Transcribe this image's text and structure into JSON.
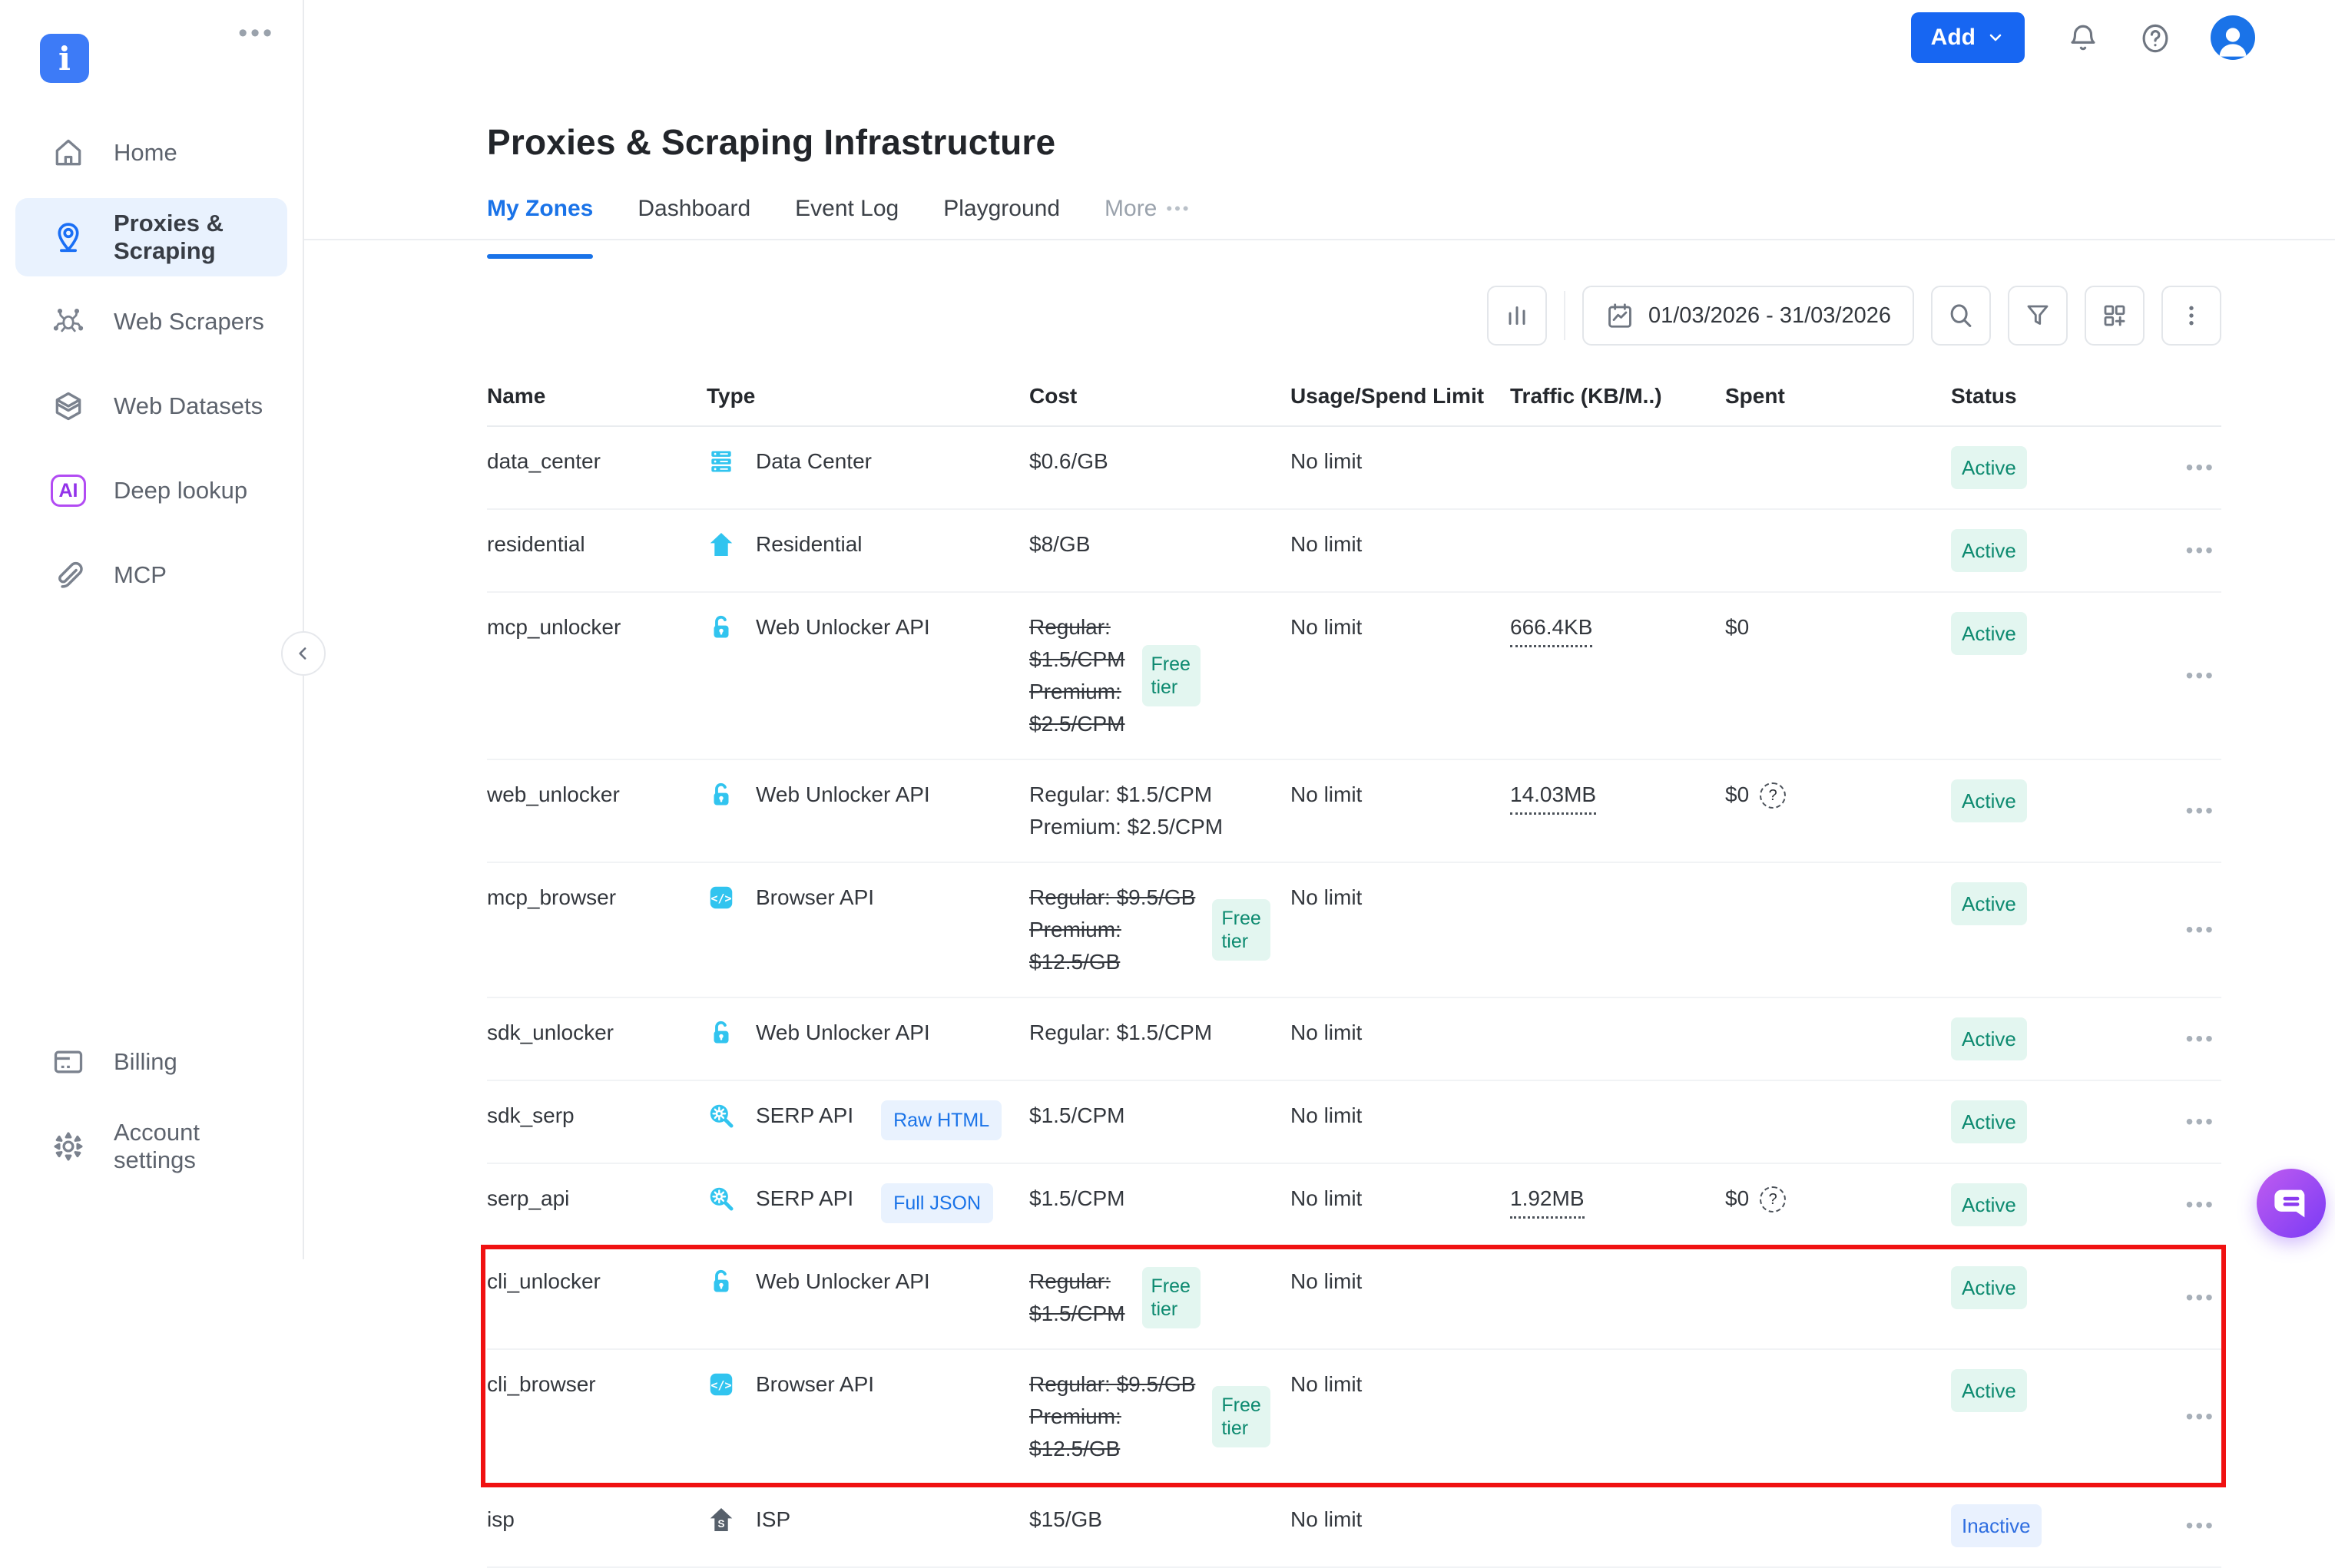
{
  "app": {
    "logo_glyph": "i",
    "colors": {
      "accent_blue": "#1766f2",
      "icon_cyan": "#31c4ef",
      "highlight_red": "#f01111",
      "active_badge_bg": "#e3f6f0",
      "active_badge_text": "#0d8a70",
      "inactive_badge_bg": "#e9f1fe",
      "inactive_badge_text": "#2f6ee0"
    }
  },
  "sidebar": {
    "menu_dots": "•••",
    "items": [
      {
        "label": "Home",
        "icon": "home",
        "active": false
      },
      {
        "label": "Proxies & Scraping",
        "icon": "location-pin",
        "active": true
      },
      {
        "label": "Web Scrapers",
        "icon": "spider",
        "active": false
      },
      {
        "label": "Web Datasets",
        "icon": "layers",
        "active": false
      },
      {
        "label": "Deep lookup",
        "icon": "ai",
        "active": false
      },
      {
        "label": "MCP",
        "icon": "paperclip",
        "active": false
      }
    ],
    "footer_items": [
      {
        "label": "Billing",
        "icon": "credit-card"
      },
      {
        "label": "Account settings",
        "icon": "gear"
      }
    ]
  },
  "topbar": {
    "add_label": "Add"
  },
  "page": {
    "title": "Proxies & Scraping Infrastructure",
    "tabs": [
      {
        "label": "My Zones",
        "active": true
      },
      {
        "label": "Dashboard",
        "active": false
      },
      {
        "label": "Event Log",
        "active": false
      },
      {
        "label": "Playground",
        "active": false
      },
      {
        "label": "More",
        "active": false,
        "muted": true,
        "overflow_dots": "•••"
      }
    ]
  },
  "toolbar": {
    "date_range": "01/03/2026 - 31/03/2026"
  },
  "table": {
    "columns": [
      "Name",
      "Type",
      "Cost",
      "Usage/Spend Limit",
      "Traffic (KB/M..)",
      "Spent",
      "Status"
    ],
    "rows": [
      {
        "name": "data_center",
        "type": "Data Center",
        "icon": "datacenter",
        "type_badge": "",
        "cost_lines": [
          "$0.6/GB"
        ],
        "cost_struck": false,
        "free_tier": false,
        "usage": "No limit",
        "traffic": "",
        "spent": "",
        "spent_help": false,
        "status": "Active",
        "highlighted": false
      },
      {
        "name": "residential",
        "type": "Residential",
        "icon": "house",
        "type_badge": "",
        "cost_lines": [
          "$8/GB"
        ],
        "cost_struck": false,
        "free_tier": false,
        "usage": "No limit",
        "traffic": "",
        "spent": "",
        "spent_help": false,
        "status": "Active",
        "highlighted": false
      },
      {
        "name": "mcp_unlocker",
        "type": "Web Unlocker API",
        "icon": "unlock",
        "type_badge": "",
        "cost_lines": [
          "Regular:",
          "$1.5/CPM",
          "Premium:",
          "$2.5/CPM"
        ],
        "cost_struck": true,
        "free_tier": true,
        "usage": "No limit",
        "traffic": "666.4KB",
        "spent": "$0",
        "spent_help": false,
        "status": "Active",
        "highlighted": false
      },
      {
        "name": "web_unlocker",
        "type": "Web Unlocker API",
        "icon": "unlock",
        "type_badge": "",
        "cost_lines": [
          "Regular: $1.5/CPM",
          "Premium: $2.5/CPM"
        ],
        "cost_struck": false,
        "free_tier": false,
        "usage": "No limit",
        "traffic": "14.03MB",
        "spent": "$0",
        "spent_help": true,
        "status": "Active",
        "highlighted": false
      },
      {
        "name": "mcp_browser",
        "type": "Browser API",
        "icon": "browser",
        "type_badge": "",
        "cost_lines": [
          "Regular: $9.5/GB",
          "Premium:",
          "$12.5/GB"
        ],
        "cost_struck": true,
        "free_tier": true,
        "usage": "No limit",
        "traffic": "",
        "spent": "",
        "spent_help": false,
        "status": "Active",
        "highlighted": false
      },
      {
        "name": "sdk_unlocker",
        "type": "Web Unlocker API",
        "icon": "unlock",
        "type_badge": "",
        "cost_lines": [
          "Regular: $1.5/CPM"
        ],
        "cost_struck": false,
        "free_tier": false,
        "usage": "No limit",
        "traffic": "",
        "spent": "",
        "spent_help": false,
        "status": "Active",
        "highlighted": false
      },
      {
        "name": "sdk_serp",
        "type": "SERP API",
        "icon": "serp",
        "type_badge": "Raw HTML",
        "cost_lines": [
          "$1.5/CPM"
        ],
        "cost_struck": false,
        "free_tier": false,
        "usage": "No limit",
        "traffic": "",
        "spent": "",
        "spent_help": false,
        "status": "Active",
        "highlighted": false
      },
      {
        "name": "serp_api",
        "type": "SERP API",
        "icon": "serp",
        "type_badge": "Full JSON",
        "cost_lines": [
          "$1.5/CPM"
        ],
        "cost_struck": false,
        "free_tier": false,
        "usage": "No limit",
        "traffic": "1.92MB",
        "spent": "$0",
        "spent_help": true,
        "status": "Active",
        "highlighted": false
      },
      {
        "name": "cli_unlocker",
        "type": "Web Unlocker API",
        "icon": "unlock",
        "type_badge": "",
        "cost_lines": [
          "Regular:",
          "$1.5/CPM"
        ],
        "cost_struck": true,
        "free_tier": true,
        "usage": "No limit",
        "traffic": "",
        "spent": "",
        "spent_help": false,
        "status": "Active",
        "highlighted": true
      },
      {
        "name": "cli_browser",
        "type": "Browser API",
        "icon": "browser",
        "type_badge": "",
        "cost_lines": [
          "Regular: $9.5/GB",
          "Premium:",
          "$12.5/GB"
        ],
        "cost_struck": true,
        "free_tier": true,
        "usage": "No limit",
        "traffic": "",
        "spent": "",
        "spent_help": false,
        "status": "Active",
        "highlighted": true
      },
      {
        "name": "isp",
        "type": "ISP",
        "icon": "isp",
        "type_badge": "",
        "cost_lines": [
          "$15/GB"
        ],
        "cost_struck": false,
        "free_tier": false,
        "usage": "No limit",
        "traffic": "",
        "spent": "",
        "spent_help": false,
        "status": "Inactive",
        "highlighted": false
      }
    ],
    "free_tier_label": "Free tier",
    "row_menu_glyph": "•••"
  }
}
